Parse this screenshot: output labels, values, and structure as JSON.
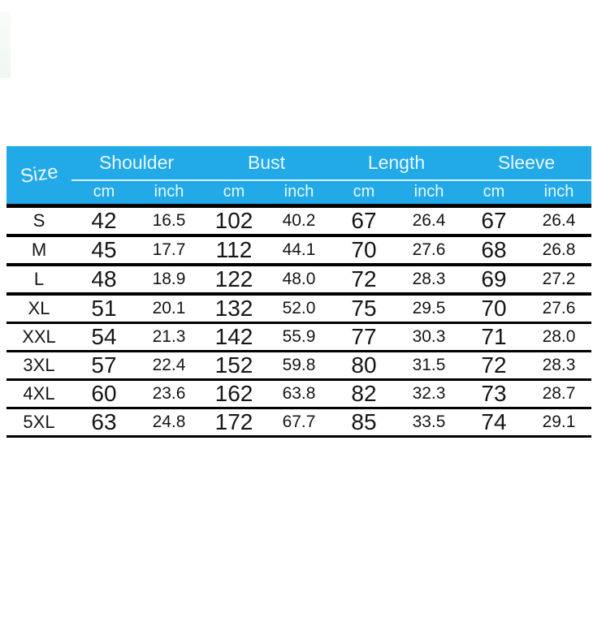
{
  "colors": {
    "header_bg": "#21A9E8",
    "header_text": "#EAF8FE",
    "header_underline": "#D8F2FC",
    "grid_line": "#000000",
    "body_text": "#161616",
    "background": "#FFFFFF"
  },
  "table": {
    "size_header": "Size",
    "groups": [
      {
        "label": "Shoulder",
        "units": [
          "cm",
          "inch"
        ]
      },
      {
        "label": "Bust",
        "units": [
          "cm",
          "inch"
        ]
      },
      {
        "label": "Length",
        "units": [
          "cm",
          "inch"
        ]
      },
      {
        "label": "Sleeve",
        "units": [
          "cm",
          "inch"
        ]
      }
    ]
  },
  "chart_data": {
    "type": "table",
    "columns": [
      "Size",
      "Shoulder (cm)",
      "Shoulder (inch)",
      "Bust (cm)",
      "Bust (inch)",
      "Length (cm)",
      "Length (inch)",
      "Sleeve (cm)",
      "Sleeve (inch)"
    ],
    "rows": [
      [
        "S",
        "42",
        "16.5",
        "102",
        "40.2",
        "67",
        "26.4",
        "67",
        "26.4"
      ],
      [
        "M",
        "45",
        "17.7",
        "112",
        "44.1",
        "70",
        "27.6",
        "68",
        "26.8"
      ],
      [
        "L",
        "48",
        "18.9",
        "122",
        "48.0",
        "72",
        "28.3",
        "69",
        "27.2"
      ],
      [
        "XL",
        "51",
        "20.1",
        "132",
        "52.0",
        "75",
        "29.5",
        "70",
        "27.6"
      ],
      [
        "XXL",
        "54",
        "21.3",
        "142",
        "55.9",
        "77",
        "30.3",
        "71",
        "28.0"
      ],
      [
        "3XL",
        "57",
        "22.4",
        "152",
        "59.8",
        "80",
        "31.5",
        "72",
        "28.3"
      ],
      [
        "4XL",
        "60",
        "23.6",
        "162",
        "63.8",
        "82",
        "32.3",
        "73",
        "28.7"
      ],
      [
        "5XL",
        "63",
        "24.8",
        "172",
        "67.7",
        "85",
        "33.5",
        "74",
        "29.1"
      ]
    ]
  }
}
